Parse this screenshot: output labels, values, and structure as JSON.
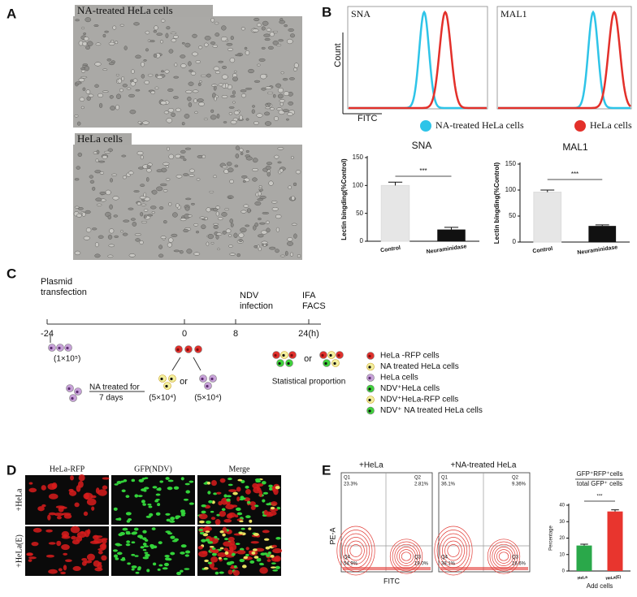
{
  "panels": {
    "A": {
      "label": "A",
      "captions": [
        "NA-treated HeLa cells",
        "HeLa cells"
      ]
    },
    "B": {
      "label": "B",
      "histograms": [
        "SNA",
        "MAL1"
      ],
      "y_axis": "Count",
      "x_axis": "FITC",
      "legend": [
        "NA-treated HeLa cells",
        "HeLa cells"
      ]
    },
    "C": {
      "label": "C",
      "stages": [
        [
          "Plasmid",
          "transfection"
        ],
        [
          "NDV",
          "infection"
        ],
        [
          "IFA",
          "FACS"
        ]
      ],
      "time_ticks": [
        "-24",
        "0",
        "8",
        "24(h)"
      ],
      "seed_count": "(1×10⁵)",
      "treatment": [
        "NA treated for",
        "7 days"
      ],
      "counts": [
        "(5×10⁴)",
        "(5×10⁴)"
      ],
      "or_labels": [
        "or",
        "or"
      ],
      "result": "Statistical proportion",
      "legend": [
        "HeLa -RFP cells",
        "NA treated HeLa cells",
        "HeLa cells",
        "NDV⁺HeLa cells",
        "NDV⁺HeLa-RFP cells",
        "NDV⁺ NA treated HeLa cells"
      ]
    },
    "D": {
      "label": "D",
      "columns": [
        "HeLa-RFP",
        "GFP(NDV)",
        "Merge"
      ],
      "rows": [
        "+HeLa",
        "+HeLa(E)"
      ]
    },
    "E": {
      "label": "E",
      "y_axis": "PE-A",
      "x_axis": "FITC",
      "plots": [
        {
          "title": "+HeLa",
          "quadrants": [
            {
              "name": "Q1",
              "value": "23.3%"
            },
            {
              "name": "Q2",
              "value": "2.81%"
            },
            {
              "name": "Q4",
              "value": "54.9%"
            },
            {
              "name": "Q3",
              "value": "19.0%"
            }
          ]
        },
        {
          "title": "+NA-treated HeLa",
          "quadrants": [
            {
              "name": "Q1",
              "value": "36.1%"
            },
            {
              "name": "Q2",
              "value": "9.36%"
            },
            {
              "name": "Q4",
              "value": "38.1%"
            },
            {
              "name": "Q3",
              "value": "16.6%"
            }
          ]
        }
      ]
    }
  },
  "chart_data": [
    {
      "type": "bar",
      "title": "SNA",
      "ylabel": "Lectin bingding(%Control)",
      "categories": [
        "Control",
        "Neuraminidase"
      ],
      "values": [
        100,
        21
      ],
      "errors": [
        6,
        4
      ],
      "colors": [
        "#e6e6e6",
        "#111111"
      ],
      "ylim": [
        0,
        150
      ],
      "yticks": [
        0,
        50,
        100,
        150
      ],
      "annotation": "***"
    },
    {
      "type": "bar",
      "title": "MAL1",
      "ylabel": "Lectin bingding(%Control)",
      "categories": [
        "Control",
        "Neuraminidase"
      ],
      "values": [
        96,
        31
      ],
      "errors": [
        4,
        2
      ],
      "colors": [
        "#e6e6e6",
        "#111111"
      ],
      "ylim": [
        0,
        150
      ],
      "yticks": [
        0,
        50,
        100,
        150
      ],
      "annotation": "***"
    },
    {
      "type": "bar",
      "title": "GFP⁺RFP⁺cells",
      "subtitle": "total GFP⁺ cells",
      "ylabel": "Percentage",
      "xlabel": "Add cells",
      "categories": [
        "HeLa",
        "HeLa(E)"
      ],
      "values": [
        15.5,
        36.2
      ],
      "errors": [
        0.8,
        1
      ],
      "colors": [
        "#2aa84a",
        "#e8352e"
      ],
      "ylim": [
        0,
        40
      ],
      "yticks": [
        0,
        10,
        20,
        30,
        40
      ],
      "annotation": "***"
    }
  ]
}
